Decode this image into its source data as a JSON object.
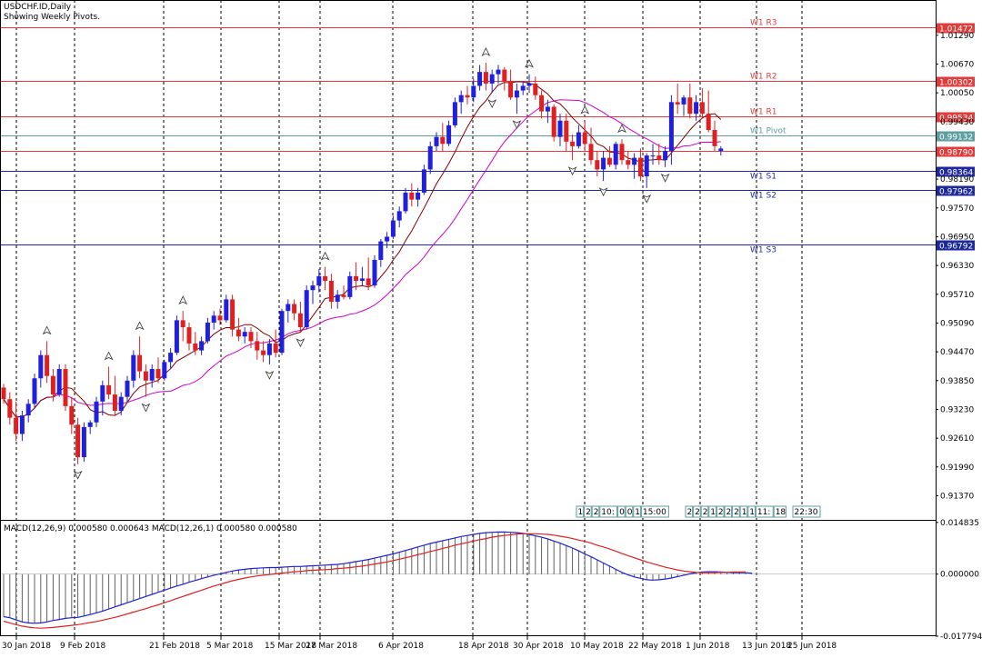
{
  "chart_data": [
    {
      "type": "candlestick",
      "symbol_timeframe": "USDCHF.ID,Daily",
      "subtitle": "Showing Weekly Pivots.",
      "y_ticks": [
        "1.01290",
        "1.00670",
        "1.00050",
        "0.99430",
        "0.98190",
        "0.97570",
        "0.96950",
        "0.96330",
        "0.95710",
        "0.95090",
        "0.94470",
        "0.93850",
        "0.93230",
        "0.92610",
        "0.91990",
        "0.91370"
      ],
      "ylim": [
        0.9085,
        1.0205
      ],
      "x_ticks": [
        "30 Jan 2018",
        "9 Feb 2018",
        "21 Feb 2018",
        "5 Mar 2018",
        "15 Mar 2018",
        "27 Mar 2018",
        "6 Apr 2018",
        "18 Apr 2018",
        "30 Apr 2018",
        "10 May 2018",
        "22 May 2018",
        "1 Jun 2018",
        "13 Jun 2018",
        "25 Jun 2018"
      ],
      "pivot_levels": [
        {
          "name": "W1 R3",
          "value": 1.01472,
          "price_label": "1.01472",
          "color": "#e03c3c"
        },
        {
          "name": "W1 R2",
          "value": 1.00302,
          "price_label": "1.00302",
          "color": "#e03c3c"
        },
        {
          "name": "W1 R1",
          "value": 0.99534,
          "price_label": "0.99534",
          "color": "#e03c3c"
        },
        {
          "name": "W1 Pivot",
          "value": 0.99132,
          "price_label": "0.99132",
          "color": "#5f9ea0"
        },
        {
          "name": "W1 S1",
          "value": 0.98364,
          "price_label": "0.98364",
          "color": "#1e2a9c"
        },
        {
          "name": "W1 S2",
          "value": 0.97962,
          "price_label": "0.97962",
          "color": "#1e2a9c"
        },
        {
          "name": "W1 S3",
          "value": 0.96792,
          "price_label": "0.96792",
          "color": "#1e2a9c"
        }
      ],
      "current_price": {
        "value": 0.9879,
        "label": "0.98790"
      },
      "session_boxes_1": [
        "1",
        "2",
        "2",
        "10:",
        "0",
        "0",
        "1",
        "15:00"
      ],
      "session_boxes_2": [
        "2",
        "2",
        "2",
        "1",
        "2",
        "2",
        "2",
        "1",
        "1",
        "11:",
        "18"
      ],
      "session_box_extra": [
        "22:30"
      ],
      "candles": [
        [
          0.937,
          0.9378,
          0.9335,
          0.9345
        ],
        [
          0.9345,
          0.936,
          0.929,
          0.9305
        ],
        [
          0.9305,
          0.934,
          0.9255,
          0.927
        ],
        [
          0.927,
          0.932,
          0.9255,
          0.931
        ],
        [
          0.931,
          0.9345,
          0.9295,
          0.9335
        ],
        [
          0.9335,
          0.94,
          0.9325,
          0.939
        ],
        [
          0.939,
          0.945,
          0.937,
          0.944
        ],
        [
          0.944,
          0.947,
          0.938,
          0.9395
        ],
        [
          0.9395,
          0.941,
          0.934,
          0.9355
        ],
        [
          0.9355,
          0.942,
          0.935,
          0.941
        ],
        [
          0.941,
          0.942,
          0.932,
          0.933
        ],
        [
          0.933,
          0.935,
          0.927,
          0.929
        ],
        [
          0.929,
          0.9305,
          0.9205,
          0.922
        ],
        [
          0.922,
          0.9295,
          0.921,
          0.9285
        ],
        [
          0.9285,
          0.93,
          0.927,
          0.9295
        ],
        [
          0.9295,
          0.935,
          0.9285,
          0.934
        ],
        [
          0.934,
          0.9385,
          0.931,
          0.9375
        ],
        [
          0.9375,
          0.9415,
          0.9345,
          0.9355
        ],
        [
          0.9355,
          0.9395,
          0.931,
          0.932
        ],
        [
          0.932,
          0.936,
          0.931,
          0.935
        ],
        [
          0.935,
          0.9395,
          0.934,
          0.9385
        ],
        [
          0.9385,
          0.945,
          0.937,
          0.944
        ],
        [
          0.944,
          0.948,
          0.939,
          0.9405
        ],
        [
          0.9405,
          0.942,
          0.935,
          0.9385
        ],
        [
          0.9385,
          0.942,
          0.937,
          0.941
        ],
        [
          0.941,
          0.9435,
          0.938,
          0.939
        ],
        [
          0.939,
          0.943,
          0.9385,
          0.9425
        ],
        [
          0.9425,
          0.9455,
          0.941,
          0.9445
        ],
        [
          0.9445,
          0.9525,
          0.944,
          0.9515
        ],
        [
          0.9515,
          0.9535,
          0.947,
          0.95
        ],
        [
          0.95,
          0.951,
          0.945,
          0.9465
        ],
        [
          0.9465,
          0.949,
          0.944,
          0.945
        ],
        [
          0.945,
          0.948,
          0.944,
          0.947
        ],
        [
          0.947,
          0.952,
          0.9465,
          0.951
        ],
        [
          0.951,
          0.9535,
          0.9495,
          0.9525
        ],
        [
          0.9525,
          0.954,
          0.9505,
          0.9515
        ],
        [
          0.9515,
          0.957,
          0.951,
          0.956
        ],
        [
          0.956,
          0.957,
          0.948,
          0.9495
        ],
        [
          0.9495,
          0.952,
          0.947,
          0.948
        ],
        [
          0.948,
          0.95,
          0.9465,
          0.949
        ],
        [
          0.949,
          0.95,
          0.9455,
          0.947
        ],
        [
          0.947,
          0.949,
          0.943,
          0.945
        ],
        [
          0.945,
          0.947,
          0.9425,
          0.944
        ],
        [
          0.944,
          0.9475,
          0.942,
          0.9465
        ],
        [
          0.9465,
          0.9495,
          0.9435,
          0.9445
        ],
        [
          0.9445,
          0.954,
          0.944,
          0.9535
        ],
        [
          0.9535,
          0.956,
          0.951,
          0.955
        ],
        [
          0.955,
          0.956,
          0.9515,
          0.953
        ],
        [
          0.953,
          0.9555,
          0.949,
          0.95
        ],
        [
          0.95,
          0.959,
          0.9495,
          0.958
        ],
        [
          0.958,
          0.96,
          0.955,
          0.959
        ],
        [
          0.959,
          0.9625,
          0.9575,
          0.961
        ],
        [
          0.961,
          0.963,
          0.958,
          0.96
        ],
        [
          0.96,
          0.9615,
          0.954,
          0.9555
        ],
        [
          0.9555,
          0.958,
          0.954,
          0.957
        ],
        [
          0.957,
          0.959,
          0.956,
          0.9565
        ],
        [
          0.9565,
          0.962,
          0.956,
          0.961
        ],
        [
          0.961,
          0.964,
          0.958,
          0.96
        ],
        [
          0.96,
          0.963,
          0.959,
          0.9605
        ],
        [
          0.9605,
          0.965,
          0.958,
          0.959
        ],
        [
          0.959,
          0.9655,
          0.9585,
          0.9645
        ],
        [
          0.9645,
          0.969,
          0.963,
          0.9685
        ],
        [
          0.9685,
          0.9705,
          0.967,
          0.9695
        ],
        [
          0.9695,
          0.974,
          0.969,
          0.973
        ],
        [
          0.973,
          0.976,
          0.9715,
          0.975
        ],
        [
          0.975,
          0.98,
          0.9745,
          0.979
        ],
        [
          0.979,
          0.981,
          0.976,
          0.9775
        ],
        [
          0.9775,
          0.98,
          0.976,
          0.979
        ],
        [
          0.979,
          0.985,
          0.9785,
          0.984
        ],
        [
          0.984,
          0.99,
          0.983,
          0.989
        ],
        [
          0.989,
          0.992,
          0.988,
          0.991
        ],
        [
          0.991,
          0.994,
          0.988,
          0.9895
        ],
        [
          0.9895,
          0.9945,
          0.989,
          0.9935
        ],
        [
          0.9935,
          0.9995,
          0.993,
          0.9985
        ],
        [
          0.9985,
          1.001,
          0.996,
          1.0
        ],
        [
          1.0,
          1.002,
          0.998,
          0.9995
        ],
        [
          0.9995,
          1.0035,
          0.9985,
          1.002
        ],
        [
          1.002,
          1.0065,
          1.001,
          1.005
        ],
        [
          1.005,
          1.007,
          1.001,
          1.0025
        ],
        [
          1.0025,
          1.0055,
          1.0005,
          1.0045
        ],
        [
          1.0045,
          1.0065,
          1.0025,
          1.0055
        ],
        [
          1.0055,
          1.006,
          1.001,
          1.003
        ],
        [
          1.003,
          1.0055,
          0.999,
          0.9995
        ],
        [
          0.9995,
          1.0025,
          0.996,
          1.001
        ],
        [
          1.001,
          1.003,
          1.0,
          1.002
        ],
        [
          1.002,
          1.0045,
          1.0005,
          1.0025
        ],
        [
          1.0025,
          1.004,
          0.999,
          1.0
        ],
        [
          1.0,
          1.001,
          0.995,
          0.9965
        ],
        [
          0.9965,
          0.999,
          0.994,
          0.9975
        ],
        [
          0.9975,
          0.998,
          0.99,
          0.991
        ],
        [
          0.991,
          0.996,
          0.989,
          0.9945
        ],
        [
          0.9945,
          0.996,
          0.988,
          0.99
        ],
        [
          0.99,
          0.9915,
          0.986,
          0.989
        ],
        [
          0.989,
          0.9935,
          0.9885,
          0.992
        ],
        [
          0.992,
          0.9945,
          0.988,
          0.9895
        ],
        [
          0.9895,
          0.993,
          0.985,
          0.986
        ],
        [
          0.986,
          0.988,
          0.9825,
          0.984
        ],
        [
          0.984,
          0.988,
          0.9815,
          0.9865
        ],
        [
          0.9865,
          0.989,
          0.9845,
          0.985
        ],
        [
          0.985,
          0.99,
          0.984,
          0.9895
        ],
        [
          0.9895,
          0.9905,
          0.985,
          0.986
        ],
        [
          0.986,
          0.988,
          0.984,
          0.985
        ],
        [
          0.985,
          0.9875,
          0.982,
          0.9865
        ],
        [
          0.9865,
          0.9885,
          0.9815,
          0.9825
        ],
        [
          0.9825,
          0.9875,
          0.98,
          0.987
        ],
        [
          0.987,
          0.9895,
          0.985,
          0.987
        ],
        [
          0.987,
          0.9895,
          0.985,
          0.986
        ],
        [
          0.986,
          0.989,
          0.9845,
          0.988
        ],
        [
          0.988,
          1.0,
          0.985,
          0.9985
        ],
        [
          0.9985,
          1.0025,
          0.996,
          0.998
        ],
        [
          0.998,
          1.0,
          0.9955,
          0.9995
        ],
        [
          0.9995,
          1.0025,
          0.995,
          0.996
        ],
        [
          0.996,
          1.0,
          0.9945,
          0.9985
        ],
        [
          0.9985,
          1.0015,
          0.995,
          0.996
        ],
        [
          0.996,
          1.001,
          0.992,
          0.9925
        ],
        [
          0.9925,
          0.9945,
          0.988,
          0.989
        ],
        [
          0.988,
          0.989,
          0.987,
          0.9885
        ]
      ],
      "macd": {
        "label": "MACD(12,26,9) 0.000580 0.000643 MACD(12,26,1) 0.000580 0.000580",
        "y_ticks": [
          "0.014835",
          "0.000000",
          "-0.017794"
        ],
        "ylim": [
          -0.0178,
          0.0148
        ],
        "histogram": [
          -0.0122,
          -0.0125,
          -0.0131,
          -0.0137,
          -0.014,
          -0.0141,
          -0.014,
          -0.0137,
          -0.0133,
          -0.013,
          -0.0127,
          -0.0125,
          -0.0124,
          -0.012,
          -0.0116,
          -0.0111,
          -0.0106,
          -0.01,
          -0.0094,
          -0.0088,
          -0.0082,
          -0.0076,
          -0.007,
          -0.0064,
          -0.0058,
          -0.0052,
          -0.0046,
          -0.004,
          -0.0034,
          -0.0029,
          -0.0023,
          -0.0018,
          -0.0013,
          -0.0008,
          -0.0003,
          0.0001,
          0.0005,
          0.0009,
          0.0012,
          0.0014,
          0.0016,
          0.0017,
          0.0018,
          0.0019,
          0.0019,
          0.002,
          0.0021,
          0.0022,
          0.0022,
          0.0023,
          0.0024,
          0.0025,
          0.0026,
          0.0027,
          0.0028,
          0.003,
          0.0033,
          0.0036,
          0.0039,
          0.0042,
          0.0046,
          0.005,
          0.0054,
          0.0058,
          0.0063,
          0.0068,
          0.0073,
          0.0078,
          0.0083,
          0.0088,
          0.0092,
          0.0096,
          0.01,
          0.0104,
          0.0108,
          0.0111,
          0.0114,
          0.0117,
          0.0119,
          0.012,
          0.0121,
          0.0121,
          0.012,
          0.0119,
          0.0117,
          0.0114,
          0.011,
          0.0106,
          0.0101,
          0.0095,
          0.0089,
          0.0082,
          0.0075,
          0.0067,
          0.0058,
          0.005,
          0.0041,
          0.0032,
          0.0023,
          0.0014,
          0.0005,
          -0.0002,
          -0.0008,
          -0.0012,
          -0.0016,
          -0.0017,
          -0.0016,
          -0.0014,
          -0.0011,
          -0.0007,
          -0.0003,
          0.0001,
          0.0004,
          0.0006,
          0.0007,
          0.0007,
          0.0006,
          0.0005,
          0.0004,
          0.0004,
          0.0004,
          0.0003
        ],
        "signal": [
          -0.0135,
          -0.014,
          -0.0145,
          -0.0149,
          -0.0152,
          -0.0154,
          -0.0155,
          -0.0154,
          -0.0153,
          -0.0151,
          -0.0149,
          -0.0147,
          -0.0145,
          -0.0142,
          -0.0139,
          -0.0136,
          -0.0132,
          -0.0128,
          -0.0124,
          -0.0119,
          -0.0114,
          -0.0109,
          -0.0104,
          -0.0099,
          -0.0093,
          -0.0088,
          -0.0082,
          -0.0076,
          -0.007,
          -0.0064,
          -0.0058,
          -0.0052,
          -0.0046,
          -0.004,
          -0.0034,
          -0.0029,
          -0.0024,
          -0.0019,
          -0.0015,
          -0.0011,
          -0.0008,
          -0.0005,
          -0.0003,
          -0.0001,
          0.0001,
          0.0003,
          0.0005,
          0.0007,
          0.0008,
          0.001,
          0.0011,
          0.0012,
          0.0013,
          0.0014,
          0.0016,
          0.0017,
          0.0019,
          0.0021,
          0.0023,
          0.0026,
          0.0029,
          0.0032,
          0.0035,
          0.0039,
          0.0043,
          0.0047,
          0.0051,
          0.0056,
          0.006,
          0.0065,
          0.0069,
          0.0074,
          0.0078,
          0.0083,
          0.0087,
          0.0091,
          0.0095,
          0.0099,
          0.0102,
          0.0106,
          0.0109,
          0.0111,
          0.0113,
          0.0115,
          0.0116,
          0.0116,
          0.0116,
          0.0115,
          0.0114,
          0.0112,
          0.0109,
          0.0106,
          0.0102,
          0.0098,
          0.0094,
          0.0089,
          0.0083,
          0.0078,
          0.0072,
          0.0066,
          0.0059,
          0.0053,
          0.0047,
          0.0041,
          0.0035,
          0.003,
          0.0025,
          0.002,
          0.0016,
          0.0012,
          0.0009,
          0.0007,
          0.0005,
          0.0004,
          0.0004,
          0.0004,
          0.0005,
          0.0005,
          0.0006,
          0.0006,
          0.0006
        ]
      }
    }
  ]
}
